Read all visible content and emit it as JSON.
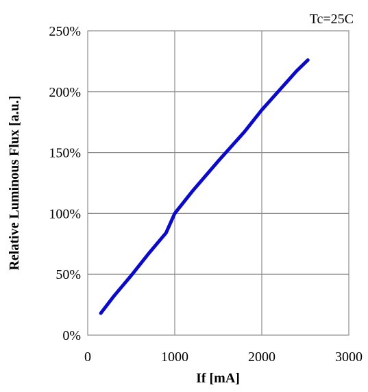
{
  "chart_data": {
    "type": "line",
    "title": "",
    "annotation": "Tc=25C",
    "xlabel": "If [mA]",
    "ylabel": "Relative  Luminous  Flux  [a.u.]",
    "xlim": [
      0,
      3000
    ],
    "ylim": [
      0,
      250
    ],
    "x_ticks": [
      0,
      1000,
      2000,
      3000
    ],
    "x_tick_labels": [
      "0",
      "1000",
      "2000",
      "3000"
    ],
    "y_ticks": [
      0,
      50,
      100,
      150,
      200,
      250
    ],
    "y_tick_labels": [
      "0%",
      "50%",
      "100%",
      "150%",
      "200%",
      "250%"
    ],
    "y_unit": "%",
    "grid": true,
    "series": [
      {
        "color": "#0a0ac8",
        "x": [
          150,
          300,
          500,
          700,
          900,
          1000,
          1200,
          1500,
          1800,
          2000,
          2200,
          2400,
          2530
        ],
        "y": [
          18,
          32,
          49,
          67,
          84,
          100,
          118,
          143,
          167,
          185,
          201,
          217,
          226
        ]
      }
    ]
  }
}
